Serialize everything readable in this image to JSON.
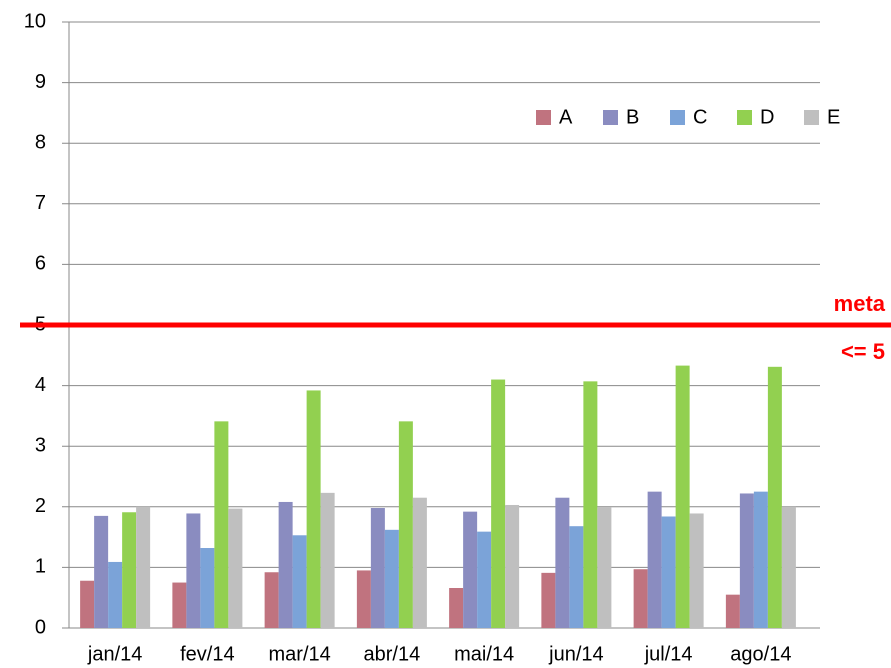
{
  "chart_data": {
    "type": "bar",
    "categories": [
      "jan/14",
      "fev/14",
      "mar/14",
      "abr/14",
      "mai/14",
      "jun/14",
      "jul/14",
      "ago/14"
    ],
    "series": [
      {
        "name": "A",
        "color": "#c0737f",
        "values": [
          0.78,
          0.75,
          0.92,
          0.95,
          0.66,
          0.91,
          0.97,
          0.55
        ]
      },
      {
        "name": "B",
        "color": "#8a8cc0",
        "values": [
          1.85,
          1.89,
          2.08,
          1.98,
          1.92,
          2.15,
          2.25,
          2.22
        ]
      },
      {
        "name": "C",
        "color": "#7ba3d8",
        "values": [
          1.09,
          1.32,
          1.53,
          1.62,
          1.59,
          1.68,
          1.84,
          2.25
        ]
      },
      {
        "name": "D",
        "color": "#92d050",
        "values": [
          1.91,
          3.41,
          3.92,
          3.41,
          4.1,
          4.07,
          4.33,
          4.31
        ]
      },
      {
        "name": "E",
        "color": "#bfbfbf",
        "values": [
          2.0,
          1.97,
          2.23,
          2.15,
          2.03,
          1.99,
          1.89,
          2.0
        ]
      }
    ],
    "ylim": [
      0,
      10
    ],
    "yticks": [
      0,
      1,
      2,
      3,
      4,
      5,
      6,
      7,
      8,
      9,
      10
    ],
    "grid": true,
    "legend": "upper right",
    "target_line": {
      "value": 5,
      "color": "#ff0000",
      "labels": [
        "meta",
        "<= 5"
      ]
    }
  }
}
